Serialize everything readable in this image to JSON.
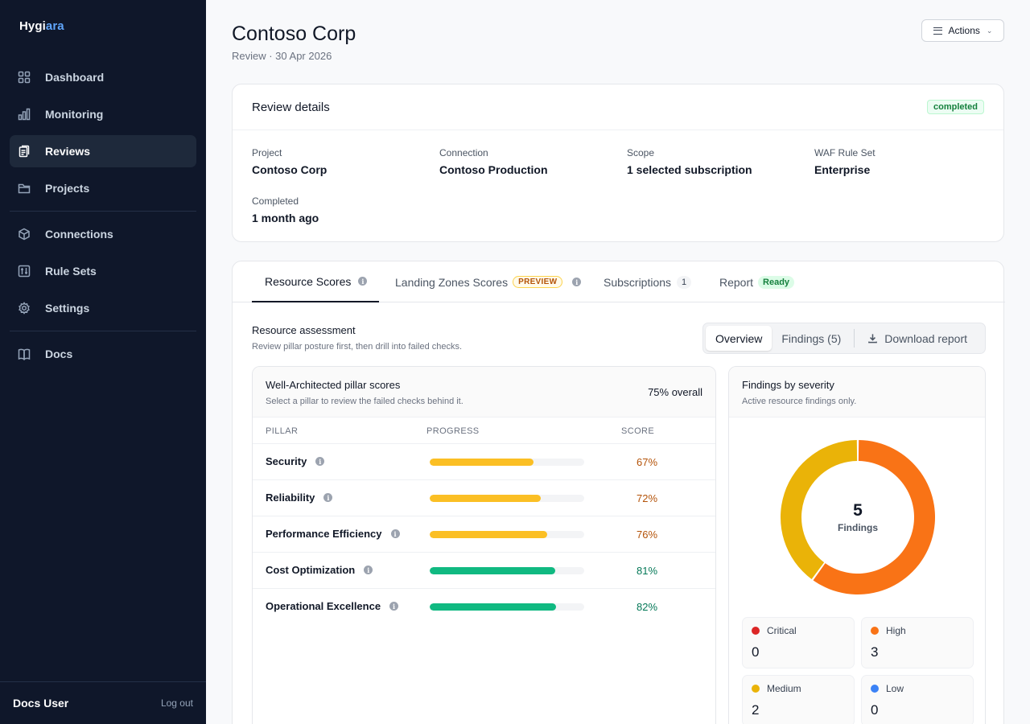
{
  "brand": {
    "name_part1": "Hygi",
    "name_part2": "ara"
  },
  "sidebar": {
    "items": [
      {
        "label": "Dashboard"
      },
      {
        "label": "Monitoring"
      },
      {
        "label": "Reviews"
      },
      {
        "label": "Projects"
      },
      {
        "label": "Connections"
      },
      {
        "label": "Rule Sets"
      },
      {
        "label": "Settings"
      },
      {
        "label": "Docs"
      }
    ],
    "active": "Reviews",
    "user": "Docs User",
    "logout": "Log out"
  },
  "header": {
    "title": "Contoso Corp",
    "subtitle": "Review · 30 Apr 2026",
    "actions_label": "Actions"
  },
  "details": {
    "title": "Review details",
    "status": "completed",
    "fields": [
      {
        "label": "Project",
        "value": "Contoso Corp"
      },
      {
        "label": "Connection",
        "value": "Contoso Production"
      },
      {
        "label": "Scope",
        "value": "1 selected subscription"
      },
      {
        "label": "WAF Rule Set",
        "value": "Enterprise"
      },
      {
        "label": "Completed",
        "value": "1 month ago"
      }
    ]
  },
  "tabs": [
    {
      "label": "Resource Scores"
    },
    {
      "label": "Landing Zones Scores",
      "tag": "PREVIEW"
    },
    {
      "label": "Subscriptions",
      "count": "1"
    },
    {
      "label": "Report",
      "tag": "Ready"
    }
  ],
  "assessment": {
    "title": "Resource assessment",
    "subtitle": "Review pillar posture first, then drill into failed checks.",
    "seg": {
      "overview": "Overview",
      "findings": "Findings (5)",
      "download": "Download report"
    }
  },
  "pillars": {
    "title": "Well-Architected pillar scores",
    "subtitle": "Select a pillar to review the failed checks behind it.",
    "overall": "75% overall",
    "columns": {
      "pillar": "PILLAR",
      "progress": "PROGRESS",
      "score": "SCORE"
    },
    "rows": [
      {
        "name": "Security",
        "score": 67,
        "score_label": "67%",
        "bar_color": "#fbbf24",
        "text_color": "#b45309"
      },
      {
        "name": "Reliability",
        "score": 72,
        "score_label": "72%",
        "bar_color": "#fbbf24",
        "text_color": "#b45309"
      },
      {
        "name": "Performance Efficiency",
        "score": 76,
        "score_label": "76%",
        "bar_color": "#fbbf24",
        "text_color": "#b45309"
      },
      {
        "name": "Cost Optimization",
        "score": 81,
        "score_label": "81%",
        "bar_color": "#10b981",
        "text_color": "#047857"
      },
      {
        "name": "Operational Excellence",
        "score": 82,
        "score_label": "82%",
        "bar_color": "#10b981",
        "text_color": "#047857"
      }
    ]
  },
  "severity": {
    "title": "Findings by severity",
    "subtitle": "Active resource findings only.",
    "total": "5",
    "total_label": "Findings",
    "items": [
      {
        "label": "Critical",
        "value": 0,
        "display": "0",
        "color": "#dc2626"
      },
      {
        "label": "High",
        "value": 3,
        "display": "3",
        "color": "#f97316"
      },
      {
        "label": "Medium",
        "value": 2,
        "display": "2",
        "color": "#eab308"
      },
      {
        "label": "Low",
        "value": 0,
        "display": "0",
        "color": "#3b82f6"
      }
    ]
  }
}
